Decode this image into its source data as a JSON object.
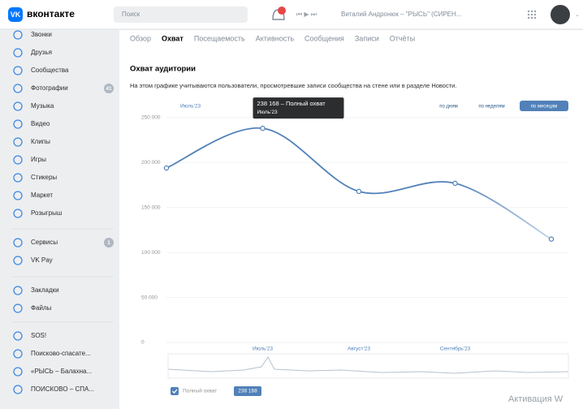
{
  "header": {
    "logo": "вконтакте",
    "search": "Поиск",
    "player_track": "Виталий Андронюк – \"РЫСЬ\" (СИРЕН..."
  },
  "sidebar": {
    "groups": [
      [
        {
          "label": "Звонки"
        },
        {
          "label": "Друзья"
        },
        {
          "label": "Сообщества"
        },
        {
          "label": "Фотографии",
          "badge": "41"
        },
        {
          "label": "Музыка"
        },
        {
          "label": "Видео"
        },
        {
          "label": "Клипы"
        },
        {
          "label": "Игры"
        },
        {
          "label": "Стикеры"
        },
        {
          "label": "Маркет"
        },
        {
          "label": "Розыгрыш"
        }
      ],
      [
        {
          "label": "Сервисы",
          "badge": "1"
        },
        {
          "label": "VK Pay"
        }
      ],
      [
        {
          "label": "Закладки"
        },
        {
          "label": "Файлы"
        }
      ],
      [
        {
          "label": "SOS!"
        },
        {
          "label": "Поисково-спасате..."
        },
        {
          "label": "«РЫСЬ – Балахна..."
        },
        {
          "label": "ПОИСКОВО – СПА..."
        }
      ]
    ]
  },
  "tabs": {
    "items": [
      "Обзор",
      "Охват",
      "Посещаемость",
      "Активность",
      "Сообщения",
      "Записи",
      "Отчёты"
    ],
    "active": 1
  },
  "section": {
    "title": "Охват аудитории",
    "description": "На этом графике учитываются пользователи, просмотревшие записи сообщества на стене или в разделе Новости."
  },
  "period_buttons": {
    "items": [
      "по дням",
      "по неделям",
      "по месяцам"
    ],
    "active": 2
  },
  "chart_data": {
    "type": "line",
    "range_label": "Июль'23",
    "categories": [
      null,
      "Июль'23",
      "Август'23",
      "Сентябрь'23",
      null
    ],
    "series": [
      {
        "name": "Полный охват",
        "color": "#5181b8",
        "values": [
          194000,
          238168,
          168000,
          177000,
          115000
        ]
      }
    ],
    "ylim": [
      0,
      250000
    ],
    "yticks": [
      0,
      {
        "value": 50000,
        "label": "50 000"
      },
      {
        "value": 100000,
        "label": "100 000"
      },
      {
        "value": 150000,
        "label": "150 000"
      },
      {
        "value": 200000,
        "label": "200 000"
      },
      {
        "value": 250000,
        "label": "250 000"
      }
    ],
    "grid": true,
    "tooltip": {
      "text": "238 168 – Полный охват",
      "date": "Июль'23"
    },
    "legend_badge": "238 168"
  },
  "watermark": "Активация W"
}
